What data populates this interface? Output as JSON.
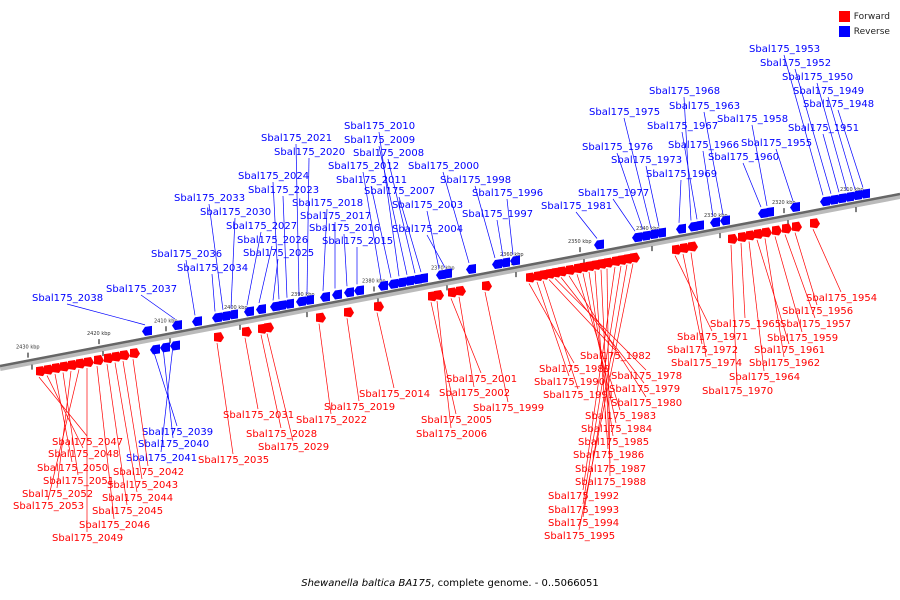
{
  "legend": [
    {
      "label": "Forward",
      "color": "#ff0000"
    },
    {
      "label": "Reverse",
      "color": "#0000ff"
    }
  ],
  "caption": {
    "organism": "Shewanella baltica BA175",
    "rest": ", complete genome. - 0..5066051"
  },
  "colors": {
    "forward": "#ff0000",
    "reverse": "#0000ff",
    "backbone": "#777777",
    "leader": "#555555"
  },
  "ticks": [
    {
      "label": "2430 kbp",
      "kb": 2430
    },
    {
      "label": "2420 kbp",
      "kb": 2420
    },
    {
      "label": "2410 kbp",
      "kb": 2410
    },
    {
      "label": "2400 kbp",
      "kb": 2400
    },
    {
      "label": "2390 kbp",
      "kb": 2390
    },
    {
      "label": "2380 kbp",
      "kb": 2380
    },
    {
      "label": "2370 kbp",
      "kb": 2370
    },
    {
      "label": "2360 kbp",
      "kb": 2360
    },
    {
      "label": "2350 kbp",
      "kb": 2350
    },
    {
      "label": "2340 kbp",
      "kb": 2340
    },
    {
      "label": "2330 kbp",
      "kb": 2330
    },
    {
      "label": "2320 kbp",
      "kb": 2320
    },
    {
      "label": "2310 kbp",
      "kb": 2310
    }
  ],
  "reverse_genes": [
    "Sbal175_2038",
    "Sbal175_2037",
    "Sbal175_2036",
    "Sbal175_2034",
    "Sbal175_2033",
    "Sbal175_2030",
    "Sbal175_2027",
    "Sbal175_2026",
    "Sbal175_2025",
    "Sbal175_2024",
    "Sbal175_2023",
    "Sbal175_2021",
    "Sbal175_2020",
    "Sbal175_2018",
    "Sbal175_2017",
    "Sbal175_2016",
    "Sbal175_2015",
    "Sbal175_2012",
    "Sbal175_2011",
    "Sbal175_2010",
    "Sbal175_2009",
    "Sbal175_2008",
    "Sbal175_2007",
    "Sbal175_2003",
    "Sbal175_2004",
    "Sbal175_2000",
    "Sbal175_1998",
    "Sbal175_1997",
    "Sbal175_1996",
    "Sbal175_1981",
    "Sbal175_1977",
    "Sbal175_1976",
    "Sbal175_1975",
    "Sbal175_1973",
    "Sbal175_1969",
    "Sbal175_1968",
    "Sbal175_1967",
    "Sbal175_1966",
    "Sbal175_1963",
    "Sbal175_1960",
    "Sbal175_1958",
    "Sbal175_1955",
    "Sbal175_1953",
    "Sbal175_1952",
    "Sbal175_1951",
    "Sbal175_1950",
    "Sbal175_1949",
    "Sbal175_1948",
    "Sbal175_2039",
    "Sbal175_2040",
    "Sbal175_2041"
  ],
  "forward_genes": [
    "Sbal175_2047",
    "Sbal175_2048",
    "Sbal175_2050",
    "Sbal175_2051",
    "Sbal175_2052",
    "Sbal175_2053",
    "Sbal175_2049",
    "Sbal175_2046",
    "Sbal175_2045",
    "Sbal175_2044",
    "Sbal175_2043",
    "Sbal175_2042",
    "Sbal175_2035",
    "Sbal175_2031",
    "Sbal175_2028",
    "Sbal175_2029",
    "Sbal175_2022",
    "Sbal175_2019",
    "Sbal175_2014",
    "Sbal175_2005",
    "Sbal175_2006",
    "Sbal175_2001",
    "Sbal175_2002",
    "Sbal175_1999",
    "Sbal175_1989",
    "Sbal175_1990",
    "Sbal175_1991",
    "Sbal175_1982",
    "Sbal175_1978",
    "Sbal175_1979",
    "Sbal175_1980",
    "Sbal175_1983",
    "Sbal175_1984",
    "Sbal175_1985",
    "Sbal175_1986",
    "Sbal175_1987",
    "Sbal175_1988",
    "Sbal175_1992",
    "Sbal175_1993",
    "Sbal175_1994",
    "Sbal175_1995",
    "Sbal175_1971",
    "Sbal175_1972",
    "Sbal175_1974",
    "Sbal175_1970",
    "Sbal175_1965",
    "Sbal175_1964",
    "Sbal175_1961",
    "Sbal175_1962",
    "Sbal175_1959",
    "Sbal175_1957",
    "Sbal175_1956",
    "Sbal175_1954"
  ]
}
